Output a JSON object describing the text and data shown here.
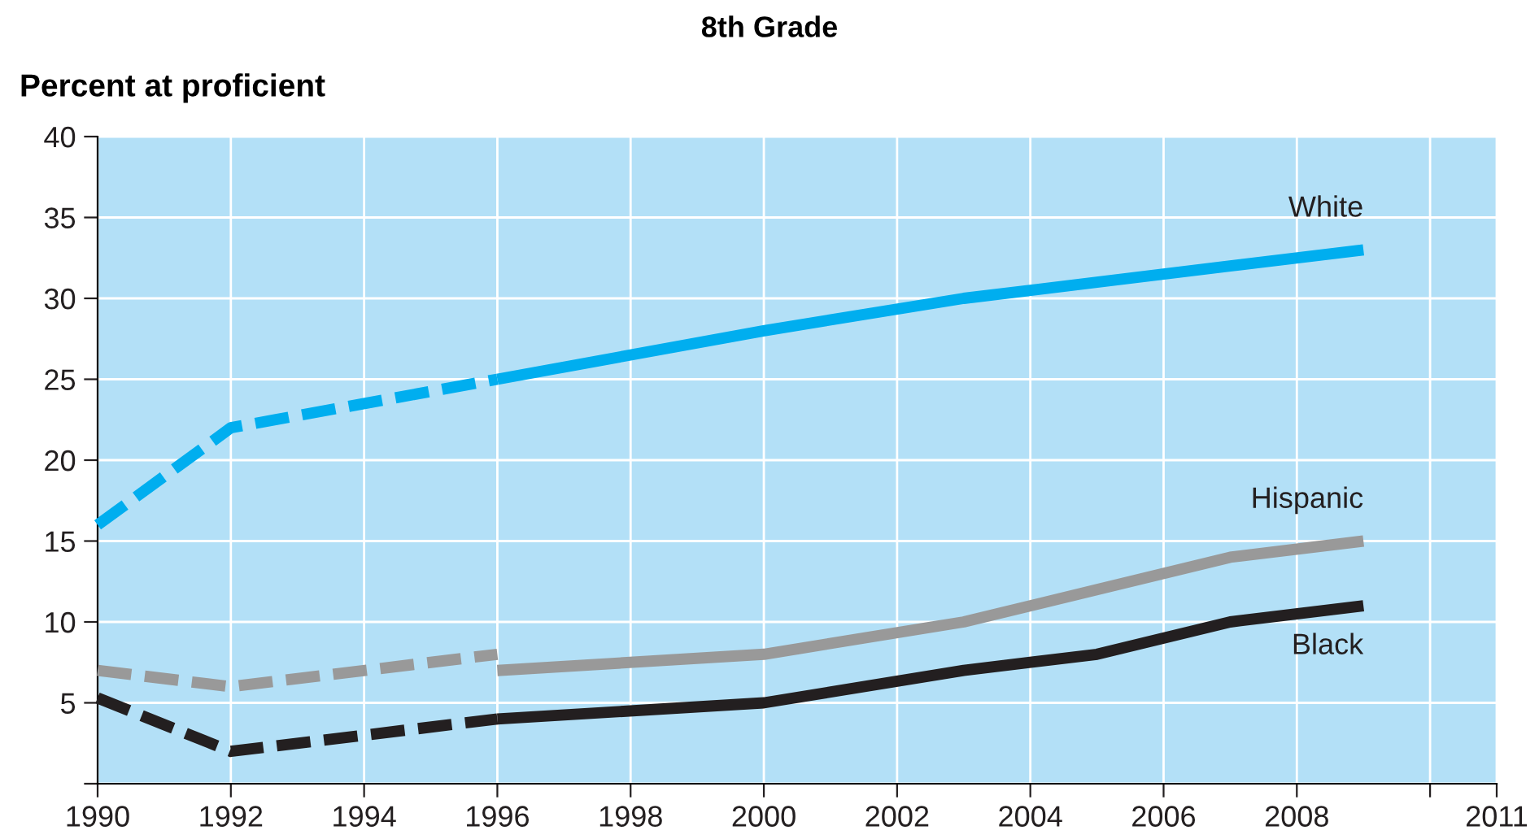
{
  "chart_data": {
    "type": "line",
    "title": "8th Grade",
    "ylabel": "Percent at proficient",
    "xlim": [
      1990,
      2011
    ],
    "xticks": [
      1990,
      1992,
      1994,
      1996,
      1998,
      2000,
      2002,
      2004,
      2006,
      2008,
      {
        "value": 2010,
        "label": null
      },
      2011
    ],
    "ylim": [
      0,
      40
    ],
    "yticks": [
      {
        "value": 0,
        "label": null
      },
      5,
      10,
      15,
      20,
      25,
      30,
      35,
      40
    ],
    "grid": true,
    "legend": false,
    "marker": "none",
    "series": [
      {
        "color": "#00aeef",
        "line_style": "dashed",
        "x": [
          1990,
          1992,
          1996
        ],
        "values": [
          16,
          22,
          25
        ]
      },
      {
        "name": "White",
        "color": "#00aeef",
        "line_style": "solid",
        "x": [
          1996,
          2000,
          2003,
          2005,
          2007,
          2009
        ],
        "values": [
          25,
          28,
          30,
          31,
          32,
          33
        ]
      },
      {
        "color": "#999999",
        "line_style": "dashed",
        "x": [
          1990,
          1992,
          1996
        ],
        "values": [
          7,
          6,
          8
        ]
      },
      {
        "name": "Hispanic",
        "color": "#999999",
        "line_style": "solid",
        "x": [
          1996,
          2000,
          2003,
          2005,
          2007,
          2009
        ],
        "values": [
          7,
          8,
          10,
          12,
          14,
          15
        ]
      },
      {
        "color": "#231f20",
        "line_style": "dashed",
        "x": [
          1990,
          1992,
          1996
        ],
        "values": [
          5.3,
          2,
          4
        ]
      },
      {
        "name": "Black",
        "color": "#231f20",
        "line_style": "solid",
        "x": [
          1996,
          2000,
          2003,
          2005,
          2007,
          2009
        ],
        "values": [
          4,
          5,
          7,
          8,
          10,
          11
        ]
      }
    ]
  }
}
